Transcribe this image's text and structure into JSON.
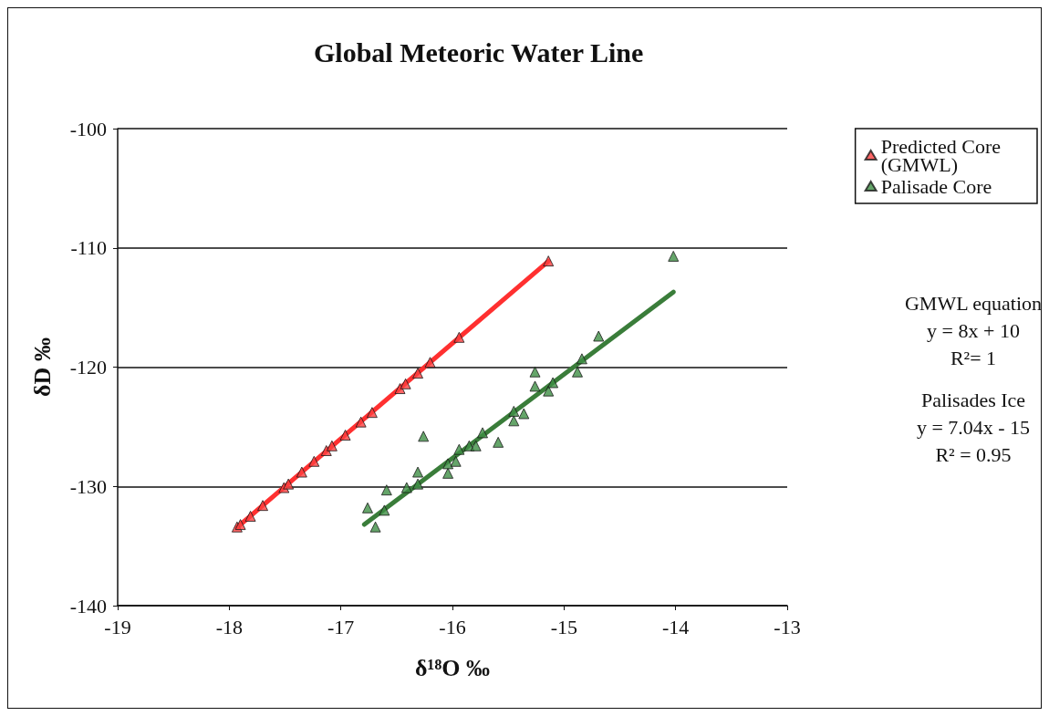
{
  "chart_data": {
    "type": "scatter",
    "title": "Global Meteoric Water Line",
    "xlabel": "δ¹⁸O ‰",
    "ylabel": "δD ‰",
    "xlim": [
      -19,
      -13
    ],
    "xticks": [
      -19,
      -18,
      -17,
      -16,
      -15,
      -14,
      -13
    ],
    "ylim": [
      -140,
      -100
    ],
    "yticks": [
      -140,
      -130,
      -120,
      -110,
      -100
    ],
    "grid": "y",
    "legend": "top right",
    "marker": "triangle",
    "series": [
      {
        "name": "Predicted Core\n(GMWL)",
        "color": "#ff4040",
        "x": [
          -17.93,
          -17.9,
          -17.81,
          -17.7,
          -17.51,
          -17.47,
          -17.35,
          -17.24,
          -17.13,
          -17.08,
          -16.96,
          -16.82,
          -16.72,
          -16.47,
          -16.42,
          -16.31,
          -16.2,
          -15.94,
          -15.14
        ],
        "values": [
          -133.4,
          -133.2,
          -132.5,
          -131.6,
          -130.1,
          -129.8,
          -128.8,
          -127.9,
          -127.0,
          -126.6,
          -125.7,
          -124.6,
          -123.8,
          -121.8,
          -121.4,
          -120.5,
          -119.6,
          -117.5,
          -111.1
        ]
      },
      {
        "name": "Palisade Core",
        "color": "#3f8f45",
        "x": [
          -16.76,
          -16.69,
          -16.61,
          -16.59,
          -16.41,
          -16.31,
          -16.31,
          -16.26,
          -16.04,
          -16.04,
          -15.97,
          -15.94,
          -15.85,
          -15.79,
          -15.73,
          -15.59,
          -15.45,
          -15.45,
          -15.36,
          -15.26,
          -15.26,
          -15.14,
          -15.1,
          -14.88,
          -14.84,
          -14.69,
          -14.02
        ],
        "values": [
          -131.8,
          -133.4,
          -132.0,
          -130.3,
          -130.1,
          -129.8,
          -128.8,
          -125.8,
          -128.9,
          -128.1,
          -127.9,
          -126.9,
          -126.6,
          -126.6,
          -125.5,
          -126.3,
          -124.5,
          -123.7,
          -123.9,
          -121.6,
          -120.4,
          -122.0,
          -121.3,
          -120.4,
          -119.3,
          -117.4,
          -110.7
        ]
      },
      {
        "type": "line",
        "marker": "none",
        "color": "#ff3030",
        "x": [
          -17.93,
          -15.14
        ],
        "values": [
          -133.44,
          -111.12
        ]
      },
      {
        "type": "line",
        "marker": "none",
        "color": "#3a7d3a",
        "x": [
          -16.79,
          -14.02
        ],
        "values": [
          -133.2,
          -113.7
        ]
      }
    ],
    "annotations": [
      "GMWL equation",
      "y = 8x + 10",
      "R²= 1",
      "Palisades Ice",
      "y = 7.04x - 15",
      "R² = 0.95"
    ]
  }
}
